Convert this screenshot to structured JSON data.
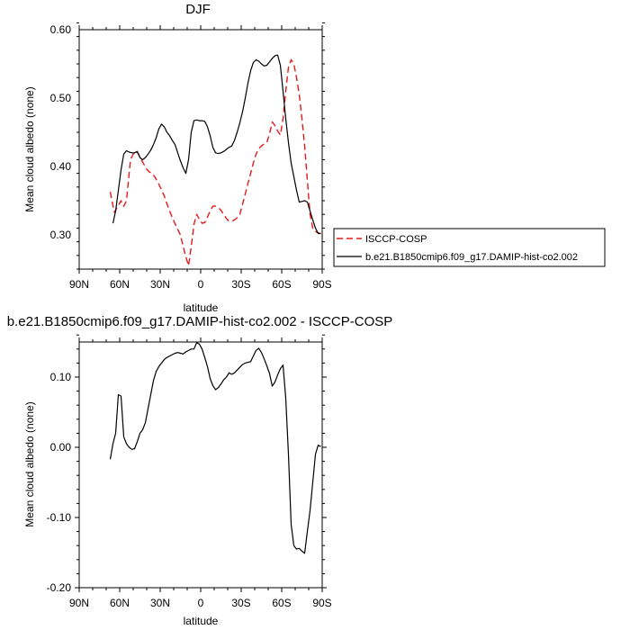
{
  "chart_data": [
    {
      "type": "line",
      "title": "DJF",
      "xlabel": "latitude",
      "ylabel": "Mean cloud albedo (none)",
      "xlim": [
        90,
        -90
      ],
      "ylim": [
        0.25,
        0.6
      ],
      "x_ticks": [
        90,
        60,
        30,
        0,
        -30,
        -60,
        -90
      ],
      "x_tick_labels": [
        "90N",
        "60N",
        "30N",
        "0",
        "30S",
        "60S",
        "90S"
      ],
      "y_ticks": [
        0.3,
        0.4,
        0.5,
        0.6
      ],
      "y_tick_labels": [
        "0.30",
        "0.40",
        "0.50",
        "0.60"
      ],
      "legend": "outside-right",
      "series": [
        {
          "name": "ISCCP-COSP",
          "color": "#e31a1c",
          "dash": true,
          "x": [
            67,
            64,
            61,
            59,
            57,
            55,
            52,
            50,
            48,
            46,
            44,
            42,
            40,
            38,
            36,
            34,
            32,
            30,
            27,
            24,
            21,
            18,
            15,
            13,
            11,
            9,
            7,
            5,
            3,
            1,
            -1,
            -3,
            -5,
            -7,
            -9,
            -11,
            -13,
            -15,
            -17,
            -19,
            -21,
            -23,
            -25,
            -27,
            -29,
            -31,
            -33,
            -35,
            -37,
            -39,
            -41,
            -43,
            -45,
            -47,
            -49,
            -51,
            -53,
            -55,
            -57,
            -59,
            -61,
            -63,
            -65,
            -67,
            -69,
            -71,
            -73,
            -75,
            -77,
            -79,
            -81,
            -83,
            -85,
            -87,
            -89
          ],
          "y": [
            0.363,
            0.333,
            0.343,
            0.35,
            0.342,
            0.35,
            0.41,
            0.418,
            0.423,
            0.418,
            0.41,
            0.403,
            0.396,
            0.392,
            0.39,
            0.385,
            0.378,
            0.37,
            0.357,
            0.34,
            0.325,
            0.312,
            0.3,
            0.283,
            0.268,
            0.255,
            0.283,
            0.315,
            0.33,
            0.323,
            0.317,
            0.318,
            0.326,
            0.335,
            0.342,
            0.342,
            0.34,
            0.336,
            0.33,
            0.324,
            0.32,
            0.32,
            0.322,
            0.325,
            0.33,
            0.345,
            0.36,
            0.375,
            0.39,
            0.405,
            0.418,
            0.426,
            0.43,
            0.433,
            0.435,
            0.448,
            0.465,
            0.46,
            0.452,
            0.446,
            0.47,
            0.51,
            0.545,
            0.556,
            0.55,
            0.53,
            0.505,
            0.47,
            0.43,
            0.38,
            0.33,
            0.31,
            0.305,
            0.303,
            0.302
          ]
        },
        {
          "name": "b.e21.B1850cmip6.f09_g17.DAMIP-hist-co2.002",
          "color": "#000000",
          "dash": false,
          "x": [
            65,
            63,
            61,
            59,
            57,
            55,
            53,
            51,
            49,
            47,
            45,
            43,
            41,
            39,
            37,
            35,
            33,
            31,
            29,
            27,
            25,
            23,
            21,
            19,
            17,
            15,
            13,
            11,
            9,
            7,
            5,
            3,
            1,
            -1,
            -3,
            -5,
            -7,
            -9,
            -11,
            -13,
            -15,
            -17,
            -19,
            -21,
            -23,
            -25,
            -27,
            -29,
            -31,
            -33,
            -35,
            -37,
            -39,
            -41,
            -43,
            -45,
            -47,
            -49,
            -51,
            -53,
            -55,
            -57,
            -59,
            -61,
            -63,
            -65,
            -67,
            -69,
            -71,
            -73,
            -75,
            -77,
            -79,
            -81,
            -83,
            -85,
            -87,
            -89
          ],
          "y": [
            0.317,
            0.335,
            0.365,
            0.395,
            0.418,
            0.423,
            0.421,
            0.42,
            0.42,
            0.422,
            0.413,
            0.41,
            0.413,
            0.418,
            0.424,
            0.432,
            0.442,
            0.455,
            0.462,
            0.458,
            0.45,
            0.445,
            0.438,
            0.432,
            0.42,
            0.408,
            0.398,
            0.39,
            0.41,
            0.45,
            0.467,
            0.468,
            0.467,
            0.467,
            0.466,
            0.458,
            0.445,
            0.428,
            0.42,
            0.419,
            0.42,
            0.422,
            0.425,
            0.428,
            0.43,
            0.438,
            0.45,
            0.464,
            0.48,
            0.5,
            0.522,
            0.54,
            0.552,
            0.556,
            0.554,
            0.55,
            0.547,
            0.548,
            0.553,
            0.558,
            0.562,
            0.563,
            0.548,
            0.51,
            0.47,
            0.435,
            0.405,
            0.385,
            0.365,
            0.348,
            0.349,
            0.35,
            0.348,
            0.335,
            0.322,
            0.31,
            0.302,
            0.302
          ]
        }
      ]
    },
    {
      "type": "line",
      "title": "b.e21.B1850cmip6.f09_g17.DAMIP-hist-co2.002 - ISCCP-COSP",
      "xlabel": "latitude",
      "ylabel": "Mean cloud albedo (none)",
      "xlim": [
        90,
        -90
      ],
      "ylim": [
        -0.2,
        0.15
      ],
      "x_ticks": [
        90,
        60,
        30,
        0,
        -30,
        -60,
        -90
      ],
      "x_tick_labels": [
        "90N",
        "60N",
        "30N",
        "0",
        "30S",
        "60S",
        "90S"
      ],
      "y_ticks": [
        -0.2,
        -0.1,
        0.0,
        0.1
      ],
      "y_tick_labels": [
        "-0.20",
        "-0.10",
        "0.00",
        "0.10"
      ],
      "series": [
        {
          "color": "#000000",
          "dash": false,
          "x": [
            67,
            65,
            63,
            61,
            59,
            57,
            55,
            53,
            51,
            49,
            47,
            45,
            43,
            41,
            39,
            37,
            35,
            33,
            31,
            29,
            27,
            25,
            23,
            21,
            19,
            17,
            15,
            13,
            11,
            9,
            7,
            5,
            3,
            1,
            -1,
            -3,
            -5,
            -7,
            -9,
            -11,
            -13,
            -15,
            -17,
            -19,
            -21,
            -23,
            -25,
            -27,
            -29,
            -31,
            -33,
            -35,
            -37,
            -39,
            -41,
            -43,
            -45,
            -47,
            -49,
            -51,
            -53,
            -55,
            -57,
            -59,
            -61,
            -63,
            -65,
            -67,
            -69,
            -71,
            -73,
            -75,
            -77,
            -79,
            -81,
            -83,
            -85,
            -87,
            -89
          ],
          "y": [
            -0.017,
            0.005,
            0.02,
            0.075,
            0.073,
            0.015,
            0.005,
            0.0,
            -0.003,
            -0.002,
            0.008,
            0.02,
            0.025,
            0.035,
            0.055,
            0.075,
            0.095,
            0.108,
            0.115,
            0.12,
            0.125,
            0.128,
            0.13,
            0.132,
            0.134,
            0.135,
            0.134,
            0.133,
            0.136,
            0.138,
            0.14,
            0.14,
            0.149,
            0.147,
            0.14,
            0.128,
            0.115,
            0.098,
            0.088,
            0.082,
            0.085,
            0.09,
            0.096,
            0.1,
            0.106,
            0.104,
            0.106,
            0.11,
            0.114,
            0.118,
            0.12,
            0.121,
            0.122,
            0.13,
            0.138,
            0.141,
            0.135,
            0.126,
            0.116,
            0.105,
            0.087,
            0.093,
            0.103,
            0.112,
            0.117,
            0.07,
            -0.01,
            -0.11,
            -0.14,
            -0.145,
            -0.144,
            -0.148,
            -0.151,
            -0.12,
            -0.09,
            -0.05,
            -0.01,
            0.003,
            0.001
          ]
        }
      ]
    }
  ]
}
